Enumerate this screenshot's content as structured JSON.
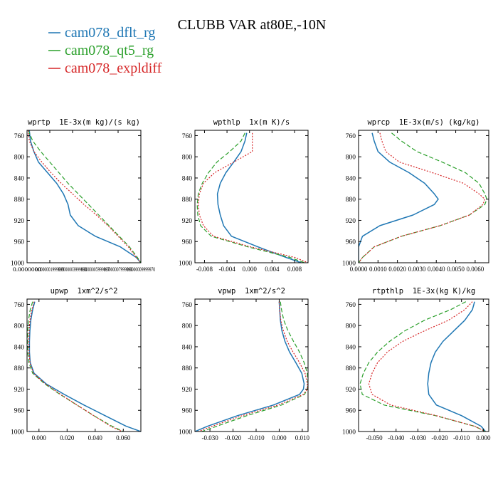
{
  "title": "CLUBB VAR at80E,-10N",
  "legend": [
    {
      "name": "cam078_dflt_rg",
      "color": "#1f77b4"
    },
    {
      "name": "cam078_qt5_rg",
      "color": "#2ca02c"
    },
    {
      "name": "cam078_expldiff",
      "color": "#d62728"
    }
  ],
  "chart_data": [
    {
      "type": "line",
      "title": "wprtp  1E-3x(m kg)/(s kg)",
      "xlim": [
        0,
        9.99997e-07
      ],
      "ylim": [
        1000,
        750
      ],
      "xticks": [
        0,
        1.999999e-07,
        3.999998e-07,
        5.999997e-07,
        7.999996e-07,
        9.99997e-07
      ],
      "xtick_labels": [
        "0.0000000",
        "0.0000001999999",
        "0.0000003999998",
        "0.0000005999997",
        "0.0000007999996",
        "0.0000009999970"
      ],
      "yticks": [
        760,
        800,
        840,
        880,
        920,
        960,
        1000
      ],
      "y": [
        750,
        770,
        790,
        810,
        830,
        850,
        870,
        890,
        910,
        930,
        950,
        970,
        990,
        1000
      ],
      "series": [
        {
          "name": "cam078_dflt_rg",
          "color": "#1f77b4",
          "dash": "",
          "values": [
            2e-08,
            3e-08,
            6e-08,
            1e-07,
            1.8e-07,
            2.6e-07,
            3.2e-07,
            3.6e-07,
            3.8e-07,
            4.5e-07,
            6e-07,
            8.2e-07,
            9.6e-07,
            1e-06
          ]
        },
        {
          "name": "cam078_qt5_rg",
          "color": "#2ca02c",
          "dash": "6,3",
          "values": [
            1e-08,
            5e-08,
            1.2e-07,
            2e-07,
            2.8e-07,
            3.6e-07,
            4.5e-07,
            5.4e-07,
            6.3e-07,
            7.2e-07,
            8.1e-07,
            9e-07,
            9.7e-07,
            1e-06
          ]
        },
        {
          "name": "cam078_expldiff",
          "color": "#d62728",
          "dash": "2,2",
          "values": [
            1e-08,
            2e-08,
            6e-08,
            1.3e-07,
            2.1e-07,
            3e-07,
            4e-07,
            5e-07,
            6.1e-07,
            7.1e-07,
            8e-07,
            8.9e-07,
            9.6e-07,
            1e-06
          ]
        }
      ]
    },
    {
      "type": "line",
      "title": "wpthlp  1x(m K)/s",
      "xlim": [
        -0.0097,
        0.0104
      ],
      "ylim": [
        1000,
        750
      ],
      "xticks": [
        -0.008,
        -0.004,
        0,
        0.004,
        0.008
      ],
      "xtick_labels": [
        "-0.008",
        "-0.004",
        "0.000",
        "0.004",
        "0.008"
      ],
      "yticks": [
        760,
        800,
        840,
        880,
        920,
        960,
        1000
      ],
      "y": [
        755,
        770,
        790,
        810,
        830,
        850,
        870,
        890,
        910,
        930,
        950,
        970,
        990,
        1000
      ],
      "series": [
        {
          "name": "cam078_dflt_rg",
          "color": "#1f77b4",
          "dash": "",
          "values": [
            -0.0005,
            -0.0008,
            -0.0015,
            -0.0028,
            -0.0042,
            -0.0052,
            -0.0057,
            -0.0056,
            -0.0052,
            -0.0046,
            -0.0032,
            0.0015,
            0.0065,
            0.0092
          ]
        },
        {
          "name": "cam078_qt5_rg",
          "color": "#2ca02c",
          "dash": "6,3",
          "values": [
            -0.0008,
            -0.0015,
            -0.0035,
            -0.0058,
            -0.0073,
            -0.0084,
            -0.0091,
            -0.0093,
            -0.0092,
            -0.0087,
            -0.0068,
            -0.0003,
            0.0072,
            0.0098
          ]
        },
        {
          "name": "cam078_expldiff",
          "color": "#d62728",
          "dash": "2,2",
          "values": [
            0.0005,
            0.0005,
            0.0005,
            -0.0028,
            -0.0062,
            -0.0082,
            -0.0089,
            -0.0091,
            -0.0089,
            -0.0082,
            -0.0064,
            0.0002,
            0.0081,
            0.0104
          ]
        }
      ]
    },
    {
      "type": "line",
      "title": "wprcp  1E-3x(m/s) (kg/kg)",
      "xlim": [
        0,
        0.0067
      ],
      "ylim": [
        1000,
        750
      ],
      "xticks": [
        0,
        0.001,
        0.002,
        0.003,
        0.004,
        0.005,
        0.006
      ],
      "xtick_labels": [
        "0.0000",
        "0.0010",
        "0.0020",
        "0.0030",
        "0.0040",
        "0.0050",
        "0.0060"
      ],
      "yticks": [
        760,
        800,
        840,
        880,
        920,
        960,
        1000
      ],
      "y": [
        755,
        770,
        790,
        810,
        830,
        850,
        870,
        880,
        890,
        910,
        930,
        950,
        970,
        990,
        1000
      ],
      "series": [
        {
          "name": "cam078_dflt_rg",
          "color": "#1f77b4",
          "dash": "",
          "values": [
            0.0007,
            0.0008,
            0.001,
            0.0016,
            0.0026,
            0.0034,
            0.0039,
            0.0041,
            0.0039,
            0.0028,
            0.0011,
            0.0002,
            0,
            0,
            0
          ]
        },
        {
          "name": "cam078_qt5_rg",
          "color": "#2ca02c",
          "dash": "6,3",
          "values": [
            0.0017,
            0.0022,
            0.003,
            0.0043,
            0.0055,
            0.0062,
            0.0065,
            0.0066,
            0.0065,
            0.0057,
            0.0042,
            0.0022,
            0.0008,
            0.0002,
            0
          ]
        },
        {
          "name": "cam078_expldiff",
          "color": "#d62728",
          "dash": "2,2",
          "values": [
            0.0011,
            0.0012,
            0.0014,
            0.0021,
            0.0038,
            0.0054,
            0.0062,
            0.0065,
            0.0064,
            0.0057,
            0.0042,
            0.0022,
            0.0008,
            0.0002,
            0
          ]
        }
      ]
    },
    {
      "type": "line",
      "title": "upwp  1xm^2/s^2",
      "xlim": [
        -0.0085,
        0.0725
      ],
      "ylim": [
        1000,
        750
      ],
      "xticks": [
        0,
        0.02,
        0.04,
        0.06
      ],
      "xtick_labels": [
        "0.000",
        "0.020",
        "0.040",
        "0.060"
      ],
      "yticks": [
        760,
        800,
        840,
        880,
        920,
        960,
        1000
      ],
      "y": [
        755,
        770,
        790,
        810,
        830,
        850,
        870,
        890,
        910,
        930,
        950,
        970,
        990,
        1000
      ],
      "series": [
        {
          "name": "cam078_dflt_rg",
          "color": "#1f77b4",
          "dash": "",
          "values": [
            -0.003,
            -0.0045,
            -0.0058,
            -0.0065,
            -0.0068,
            -0.0068,
            -0.0062,
            -0.0035,
            0.005,
            0.018,
            0.032,
            0.047,
            0.062,
            0.0725
          ]
        },
        {
          "name": "cam078_qt5_rg",
          "color": "#2ca02c",
          "dash": "6,3",
          "values": [
            -0.0045,
            -0.0062,
            -0.0075,
            -0.008,
            -0.0082,
            -0.008,
            -0.0072,
            -0.0045,
            0.004,
            0.015,
            0.027,
            0.039,
            0.052,
            0.06
          ]
        },
        {
          "name": "cam078_expldiff",
          "color": "#d62728",
          "dash": "2,2",
          "values": [
            -0.0035,
            -0.005,
            -0.0065,
            -0.007,
            -0.0072,
            -0.0071,
            -0.0064,
            -0.004,
            0.0045,
            0.0155,
            0.027,
            0.039,
            0.051,
            0.059
          ]
        }
      ]
    },
    {
      "type": "line",
      "title": "vpwp  1xm^2/s^2",
      "xlim": [
        -0.0365,
        0.0125
      ],
      "ylim": [
        1000,
        750
      ],
      "xticks": [
        -0.03,
        -0.02,
        -0.01,
        0,
        0.01
      ],
      "xtick_labels": [
        "-0.030",
        "-0.020",
        "-0.010",
        "0.000",
        "0.010"
      ],
      "yticks": [
        760,
        800,
        840,
        880,
        920,
        960,
        1000
      ],
      "y": [
        755,
        770,
        790,
        810,
        830,
        850,
        870,
        890,
        910,
        920,
        930,
        950,
        970,
        990,
        1000
      ],
      "series": [
        {
          "name": "cam078_dflt_rg",
          "color": "#1f77b4",
          "dash": "",
          "values": [
            0,
            0.0002,
            0.0005,
            0.0012,
            0.0025,
            0.0045,
            0.0072,
            0.0098,
            0.0108,
            0.0105,
            0.0088,
            -0.0025,
            -0.018,
            -0.031,
            -0.0365
          ]
        },
        {
          "name": "cam078_qt5_rg",
          "color": "#2ca02c",
          "dash": "6,3",
          "values": [
            0.0005,
            0.001,
            0.002,
            0.0038,
            0.0062,
            0.0088,
            0.0108,
            0.0122,
            0.0125,
            0.0122,
            0.011,
            0.001,
            -0.014,
            -0.027,
            -0.0335
          ]
        },
        {
          "name": "cam078_expldiff",
          "color": "#d62728",
          "dash": "2,2",
          "values": [
            0,
            0.0002,
            0.0007,
            0.0018,
            0.0035,
            0.006,
            0.0088,
            0.0112,
            0.0122,
            0.0122,
            0.0105,
            -0.0005,
            -0.016,
            -0.029,
            -0.035
          ]
        }
      ]
    },
    {
      "type": "line",
      "title": "rtpthlp  1E-3x(kg K)/kg",
      "xlim": [
        -0.0572,
        0.0025
      ],
      "ylim": [
        1000,
        750
      ],
      "xticks": [
        -0.05,
        -0.04,
        -0.03,
        -0.02,
        -0.01,
        0
      ],
      "xtick_labels": [
        "-0.050",
        "-0.040",
        "-0.030",
        "-0.020",
        "-0.010",
        "0.000"
      ],
      "yticks": [
        760,
        800,
        840,
        880,
        920,
        960,
        1000
      ],
      "y": [
        755,
        770,
        790,
        810,
        830,
        850,
        870,
        890,
        910,
        930,
        950,
        970,
        990,
        1000
      ],
      "series": [
        {
          "name": "cam078_dflt_rg",
          "color": "#1f77b4",
          "dash": "",
          "values": [
            -0.004,
            -0.005,
            -0.0085,
            -0.0135,
            -0.0185,
            -0.022,
            -0.024,
            -0.025,
            -0.0255,
            -0.025,
            -0.0215,
            -0.01,
            -0.001,
            0.001
          ]
        },
        {
          "name": "cam078_qt5_rg",
          "color": "#2ca02c",
          "dash": "6,3",
          "values": [
            -0.008,
            -0.015,
            -0.027,
            -0.036,
            -0.043,
            -0.0485,
            -0.0525,
            -0.055,
            -0.0565,
            -0.0555,
            -0.0455,
            -0.022,
            -0.004,
            0.001
          ]
        },
        {
          "name": "cam078_expldiff",
          "color": "#d62728",
          "dash": "2,2",
          "values": [
            -0.005,
            -0.0085,
            -0.016,
            -0.027,
            -0.037,
            -0.044,
            -0.0485,
            -0.051,
            -0.0525,
            -0.051,
            -0.0425,
            -0.0215,
            -0.004,
            0.001
          ]
        }
      ]
    }
  ]
}
